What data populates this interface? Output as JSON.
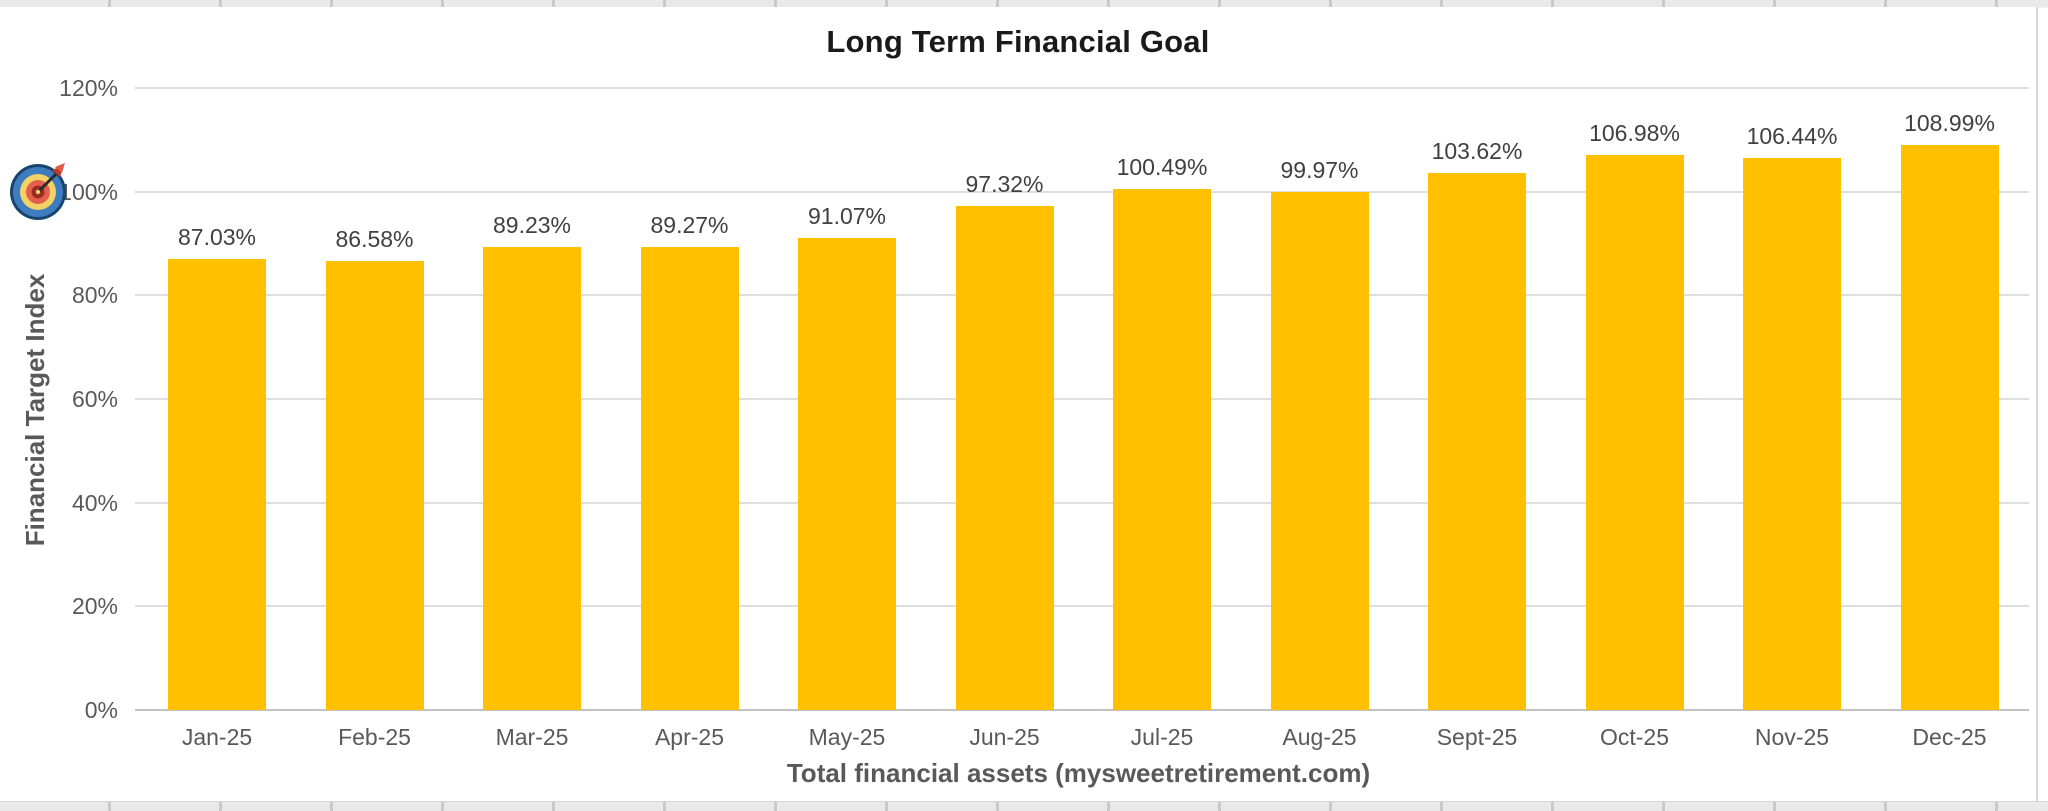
{
  "window": {
    "background_color": "#ffffff",
    "spreadsheet_strip_color": "#e9e9e9",
    "spreadsheet_divider_color": "#c9c9c9",
    "chart_border_color": "#d9d9d9"
  },
  "chart_data": {
    "type": "bar",
    "title": "Long Term Financial Goal",
    "xlabel": "Total financial assets (mysweetretirement.com)",
    "ylabel": "Financial Target Index",
    "categories": [
      "Jan-25",
      "Feb-25",
      "Mar-25",
      "Apr-25",
      "May-25",
      "Jun-25",
      "Jul-25",
      "Aug-25",
      "Sept-25",
      "Oct-25",
      "Nov-25",
      "Dec-25"
    ],
    "values": [
      87.03,
      86.58,
      89.23,
      89.27,
      91.07,
      97.32,
      100.49,
      99.97,
      103.62,
      106.98,
      106.44,
      108.99
    ],
    "data_labels": [
      "87.03%",
      "86.58%",
      "89.23%",
      "89.27%",
      "91.07%",
      "97.32%",
      "100.49%",
      "99.97%",
      "103.62%",
      "106.98%",
      "106.44%",
      "108.99%"
    ],
    "y_ticks": [
      "0%",
      "20%",
      "40%",
      "60%",
      "80%",
      "100%",
      "120%"
    ],
    "y_tick_values": [
      0,
      20,
      40,
      60,
      80,
      100,
      120
    ],
    "ylim": [
      0,
      120
    ],
    "grid": true,
    "legend": "none",
    "bar_color": "#FFC000",
    "gridline_color": "#dedede",
    "axis_line_color": "#c2c2c2",
    "tick_label_color": "#595959",
    "data_label_color": "#404040",
    "title_color": "#1a1a1a",
    "axis_title_color": "#595959",
    "target_icon": "bullseye-dart-icon",
    "target_icon_at_tick": "100%"
  }
}
